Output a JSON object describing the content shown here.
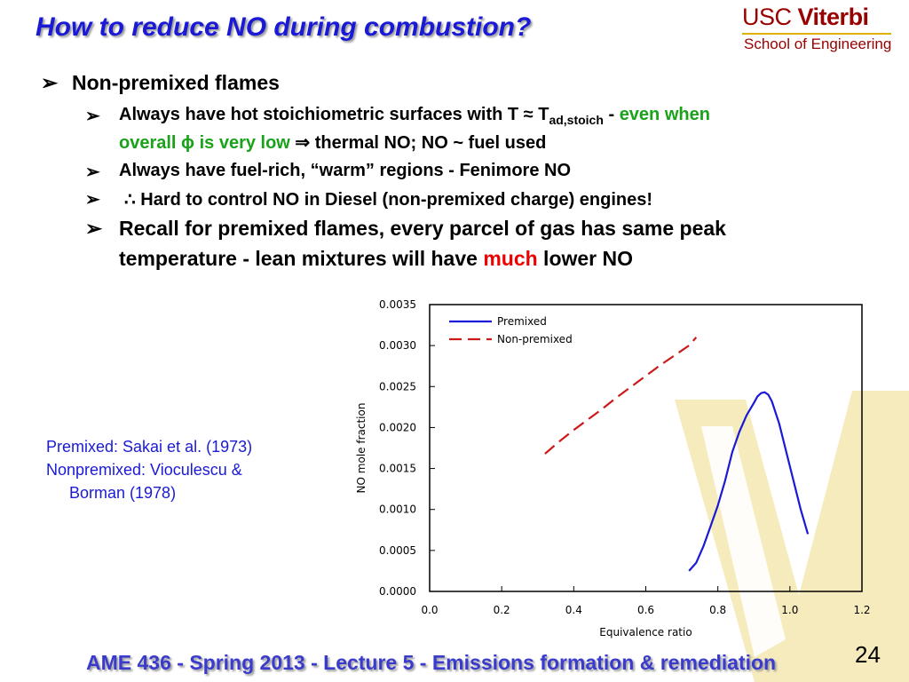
{
  "slide": {
    "title": "How to reduce NO during combustion?",
    "logo": {
      "usc": "USC",
      "viterbi": "Viterbi",
      "school": "School of Engineering"
    },
    "bullet_glyph": "➢",
    "bullets": {
      "b1": "Non-premixed flames",
      "b2": {
        "part1": "Always have hot stoichiometric surfaces with T ≈ T",
        "subscript": "ad,stoich",
        "dash": " - ",
        "green1": "even when",
        "green2": "overall ϕ is very low",
        "rest2": " ⇒ thermal NO; NO ~ fuel used"
      },
      "b3": "Always have fuel-rich, “warm” regions - Fenimore NO",
      "b4": "∴ Hard to control NO in Diesel (non-premixed charge) engines!",
      "b5": {
        "line1": "Recall for premixed flames, every parcel of gas has same peak",
        "line2a": "temperature - lean mixtures will have ",
        "line2red": "much",
        "line2b": " lower NO"
      }
    },
    "references": {
      "line1": "Premixed:  Sakai et al. (1973)",
      "line2": "Nonpremixed: Vioculescu &",
      "line3": "Borman (1978)"
    },
    "footer": "AME 436 - Spring 2013 - Lecture 5 - Emissions formation & remediation",
    "page_number": "24",
    "colors": {
      "title": "#1a1ad6",
      "green": "#1aa31a",
      "red": "#ee0000",
      "logo": "#990000",
      "watermark": "#f2e3a8"
    }
  },
  "chart_data": {
    "type": "line",
    "xlabel": "Equivalence ratio",
    "ylabel": "NO mole fraction",
    "xlim": [
      0.0,
      1.2
    ],
    "ylim": [
      0.0,
      0.0035
    ],
    "xticks": [
      "0.0",
      "0.2",
      "0.4",
      "0.6",
      "0.8",
      "1.0",
      "1.2"
    ],
    "yticks": [
      "0.0000",
      "0.0005",
      "0.0010",
      "0.0015",
      "0.0020",
      "0.0025",
      "0.0030",
      "0.0035"
    ],
    "legend": "top-left",
    "grid": false,
    "series": [
      {
        "name": "Premixed",
        "color": "#1a1ad6",
        "style": "solid",
        "x": [
          0.72,
          0.74,
          0.76,
          0.78,
          0.8,
          0.82,
          0.84,
          0.86,
          0.88,
          0.9,
          0.91,
          0.92,
          0.93,
          0.94,
          0.95,
          0.97,
          0.99,
          1.01,
          1.03,
          1.05
        ],
        "y": [
          0.00025,
          0.00035,
          0.00055,
          0.0008,
          0.00105,
          0.00135,
          0.0017,
          0.00195,
          0.00215,
          0.0023,
          0.00238,
          0.00242,
          0.00243,
          0.0024,
          0.00232,
          0.00205,
          0.0017,
          0.00135,
          0.001,
          0.0007
        ]
      },
      {
        "name": "Non-premixed",
        "color": "#cc1a1a",
        "style": "dashed",
        "x": [
          0.32,
          0.36,
          0.4,
          0.44,
          0.48,
          0.52,
          0.56,
          0.6,
          0.64,
          0.68,
          0.72,
          0.74
        ],
        "y": [
          0.00168,
          0.00183,
          0.00197,
          0.0021,
          0.00223,
          0.00237,
          0.0025,
          0.00263,
          0.00276,
          0.00288,
          0.003,
          0.0031
        ]
      }
    ]
  }
}
